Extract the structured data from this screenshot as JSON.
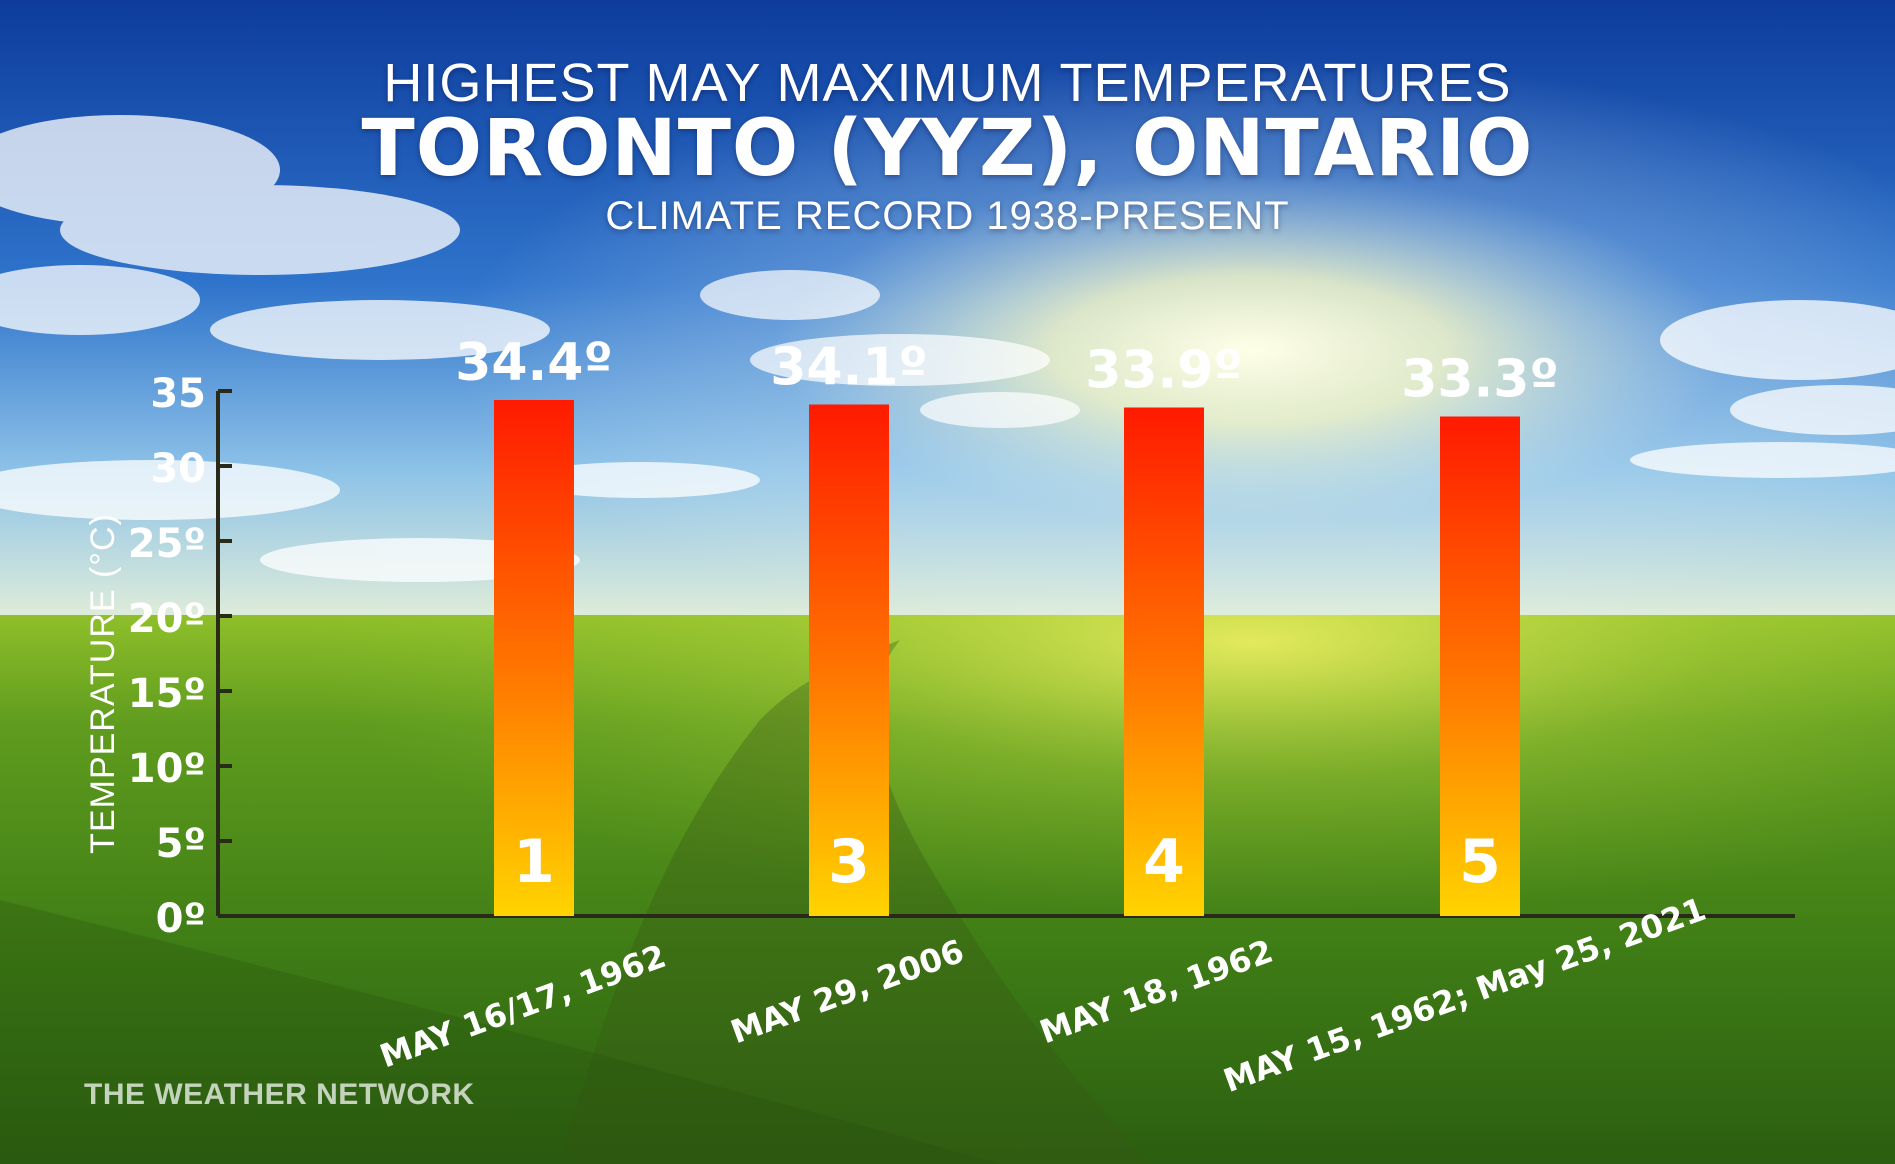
{
  "header": {
    "line1": "HIGHEST MAY MAXIMUM TEMPERATURES",
    "line2": "TORONTO (YYZ), ONTARIO",
    "line3": "CLIMATE RECORD 1938-PRESENT"
  },
  "brand": "THE WEATHER NETWORK",
  "colors": {
    "bar_top": "#ff1a00",
    "bar_bottom": "#ffd400",
    "axis": "#2a2a1a",
    "text": "#ffffff"
  },
  "chart_data": {
    "type": "bar",
    "title": "HIGHEST MAY MAXIMUM TEMPERATURES",
    "ylabel": "TEMPERATURE (°C)",
    "ylim": [
      0,
      35
    ],
    "y_ticks": [
      {
        "value": 35,
        "label": "35"
      },
      {
        "value": 30,
        "label": "30"
      },
      {
        "value": 25,
        "label": "25º"
      },
      {
        "value": 20,
        "label": "20º"
      },
      {
        "value": 15,
        "label": "15º"
      },
      {
        "value": 10,
        "label": "10º"
      },
      {
        "value": 5,
        "label": "5º"
      },
      {
        "value": 0,
        "label": "0º"
      }
    ],
    "categories": [
      "MAY 16/17, 1962",
      "MAY 29, 2006",
      "MAY 18, 1962",
      "MAY 15, 1962; May 25, 2021"
    ],
    "values": [
      34.4,
      34.1,
      33.9,
      33.3
    ],
    "value_labels": [
      "34.4º",
      "34.1º",
      "33.9º",
      "33.3º"
    ],
    "ranks": [
      "1",
      "3",
      "4",
      "5"
    ],
    "grid": false,
    "legend": "none"
  }
}
